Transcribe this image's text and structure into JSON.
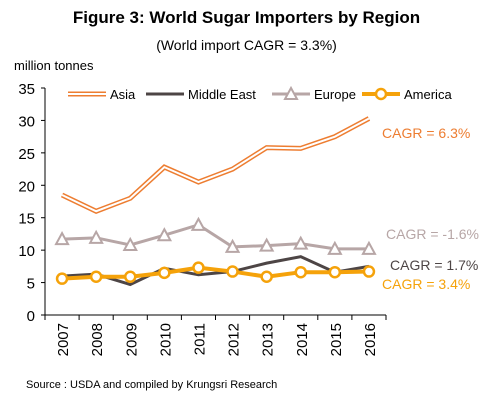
{
  "header": {
    "title": "Figure 3: World Sugar Importers by Region",
    "subtitle": "(World import CAGR = 3.3%)"
  },
  "footer": {
    "source": "Source : USDA and compiled by Krungsri Research"
  },
  "chart_data": {
    "type": "line",
    "ylabel": "million tonnes",
    "ylim": [
      0,
      35
    ],
    "yticks": [
      0,
      5,
      10,
      15,
      20,
      25,
      30,
      35
    ],
    "grid": false,
    "legend_position": "top",
    "x": [
      "2007",
      "2008",
      "2009",
      "2010",
      "2011",
      "2012",
      "2013",
      "2014",
      "2015",
      "2016"
    ],
    "series": [
      {
        "name": "Asia",
        "color": "#ED7D31",
        "style": "double-line",
        "values": [
          18.5,
          16.0,
          18.0,
          22.8,
          20.5,
          22.5,
          25.8,
          25.7,
          27.5,
          30.3
        ],
        "annotation": "CAGR = 6.3%"
      },
      {
        "name": "Middle East",
        "color": "#4D4545",
        "style": "solid",
        "values": [
          6.0,
          6.3,
          4.7,
          7.2,
          6.2,
          6.7,
          8.0,
          9.0,
          6.6,
          7.5
        ],
        "annotation": "CAGR = 1.7%"
      },
      {
        "name": "Europe",
        "color": "#B7A6A6",
        "style": "triangle-marker",
        "values": [
          11.7,
          11.9,
          10.8,
          12.3,
          13.9,
          10.5,
          10.7,
          11.0,
          10.2,
          10.2
        ],
        "annotation": "CAGR = -1.6%"
      },
      {
        "name": "America",
        "color": "#F5A20A",
        "style": "circle-marker",
        "values": [
          5.6,
          5.9,
          5.9,
          6.5,
          7.3,
          6.7,
          5.9,
          6.6,
          6.6,
          6.7
        ],
        "annotation": "CAGR = 3.4%"
      }
    ]
  }
}
